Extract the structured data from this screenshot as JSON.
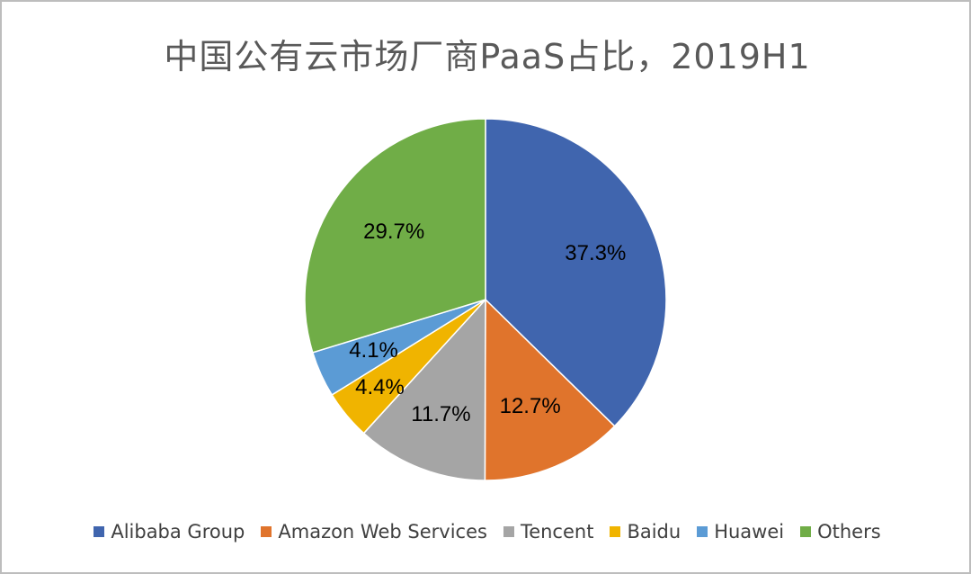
{
  "chart_data": {
    "type": "pie",
    "title": "中国公有云市场厂商PaaS占比，2019H1",
    "labels": [
      "Alibaba Group",
      "Amazon Web Services",
      "Tencent",
      "Baidu",
      "Huawei",
      "Others"
    ],
    "values": [
      37.3,
      12.7,
      11.7,
      4.4,
      4.1,
      29.7
    ],
    "value_labels": [
      "37.3%",
      "12.7%",
      "11.7%",
      "4.4%",
      "4.1%",
      "29.7%"
    ],
    "colors": [
      "#4065AE",
      "#E0742C",
      "#A5A5A5",
      "#F0B400",
      "#5B9BD5",
      "#70AD47"
    ],
    "legend_position": "bottom",
    "start_angle": "12 o'clock",
    "direction": "clockwise"
  }
}
